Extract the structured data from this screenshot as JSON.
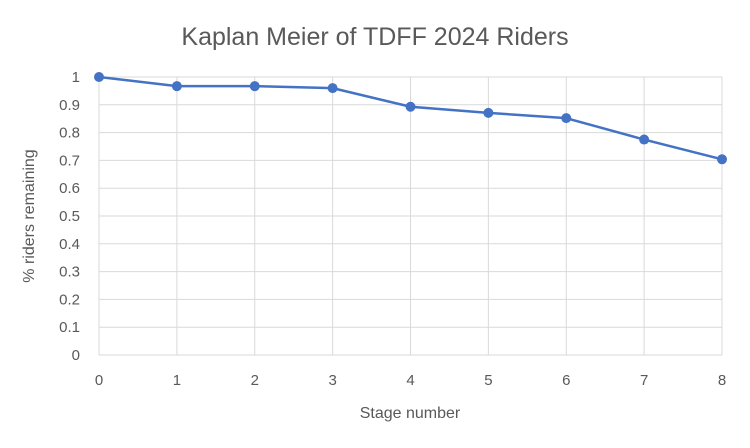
{
  "chart_data": {
    "type": "line",
    "title": "Kaplan Meier of TDFF 2024 Riders",
    "xlabel": "Stage number",
    "ylabel": "% riders remaining",
    "x": [
      0,
      1,
      2,
      3,
      4,
      5,
      6,
      7,
      8
    ],
    "series": [
      {
        "values": [
          1.0,
          0.967,
          0.967,
          0.96,
          0.893,
          0.871,
          0.852,
          0.775,
          0.704
        ]
      }
    ],
    "xlim": [
      0,
      8
    ],
    "ylim": [
      0,
      1
    ],
    "x_ticks": [
      "0",
      "1",
      "2",
      "3",
      "4",
      "5",
      "6",
      "7",
      "8"
    ],
    "y_ticks": [
      "0",
      "0.1",
      "0.2",
      "0.3",
      "0.4",
      "0.5",
      "0.6",
      "0.7",
      "0.8",
      "0.9",
      "1"
    ],
    "grid": true,
    "legend": "none",
    "colors": {
      "series": "#4472c4",
      "grid": "#d9d9d9",
      "text": "#595959"
    }
  }
}
